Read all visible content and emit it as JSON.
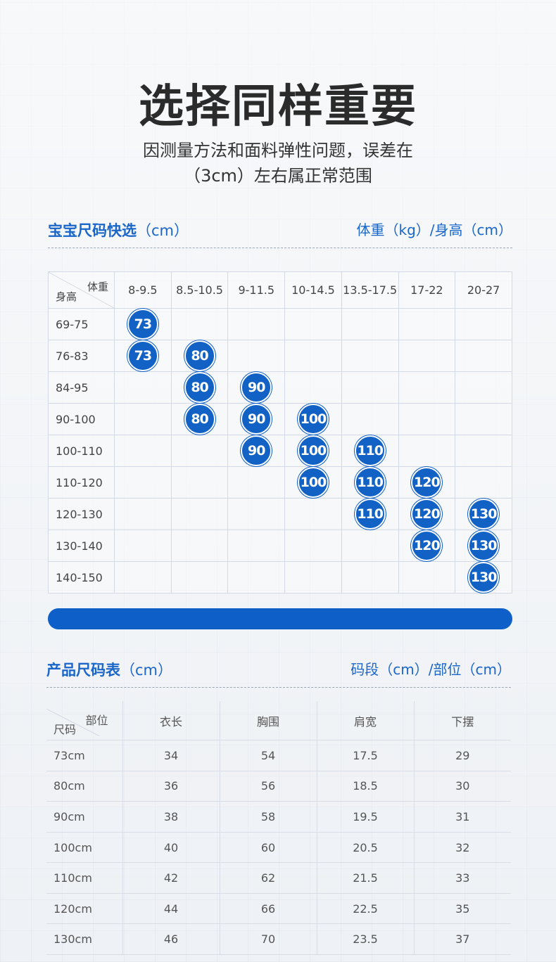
{
  "header": {
    "title": "选择同样重要",
    "subtitle_line1": "因测量方法和面料弹性问题，误差在",
    "subtitle_line2": "（3cm）左右属正常范围"
  },
  "quick_select": {
    "label": "宝宝尺码快选",
    "unit": "（cm）",
    "right_label": "体重（kg）/身高（cm）",
    "corner_top": "体重",
    "corner_bottom": "身高",
    "weight_columns": [
      "8-9.5",
      "8.5-10.5",
      "9-11.5",
      "10-14.5",
      "13.5-17.5",
      "17-22",
      "20-27"
    ],
    "rows": [
      {
        "height": "69-75",
        "cells": [
          "73",
          "",
          "",
          "",
          "",
          "",
          ""
        ]
      },
      {
        "height": "76-83",
        "cells": [
          "73",
          "80",
          "",
          "",
          "",
          "",
          ""
        ]
      },
      {
        "height": "84-95",
        "cells": [
          "",
          "80",
          "90",
          "",
          "",
          "",
          ""
        ]
      },
      {
        "height": "90-100",
        "cells": [
          "",
          "80",
          "90",
          "100",
          "",
          "",
          ""
        ]
      },
      {
        "height": "100-110",
        "cells": [
          "",
          "",
          "90",
          "100",
          "110",
          "",
          ""
        ]
      },
      {
        "height": "110-120",
        "cells": [
          "",
          "",
          "",
          "100",
          "110",
          "120",
          ""
        ]
      },
      {
        "height": "120-130",
        "cells": [
          "",
          "",
          "",
          "",
          "110",
          "120",
          "130"
        ]
      },
      {
        "height": "130-140",
        "cells": [
          "",
          "",
          "",
          "",
          "",
          "120",
          "130"
        ]
      },
      {
        "height": "140-150",
        "cells": [
          "",
          "",
          "",
          "",
          "",
          "",
          "130"
        ]
      }
    ],
    "badge_color": "#1262c6"
  },
  "size_table": {
    "label": "产品尺码表",
    "unit": "（cm）",
    "right_label": "码段（cm）/部位（cm）",
    "corner_top": "部位",
    "corner_bottom": "尺码",
    "columns": [
      "衣长",
      "胸围",
      "肩宽",
      "下摆"
    ],
    "rows": [
      {
        "size": "73cm",
        "values": [
          "34",
          "54",
          "17.5",
          "29"
        ]
      },
      {
        "size": "80cm",
        "values": [
          "36",
          "56",
          "18.5",
          "30"
        ]
      },
      {
        "size": "90cm",
        "values": [
          "38",
          "58",
          "19.5",
          "31"
        ]
      },
      {
        "size": "100cm",
        "values": [
          "40",
          "60",
          "20.5",
          "32"
        ]
      },
      {
        "size": "110cm",
        "values": [
          "42",
          "62",
          "21.5",
          "33"
        ]
      },
      {
        "size": "120cm",
        "values": [
          "44",
          "66",
          "22.5",
          "35"
        ]
      },
      {
        "size": "130cm",
        "values": [
          "46",
          "70",
          "23.5",
          "37"
        ]
      }
    ]
  },
  "colors": {
    "accent": "#1a66c9",
    "bar": "#0f5fc8"
  }
}
